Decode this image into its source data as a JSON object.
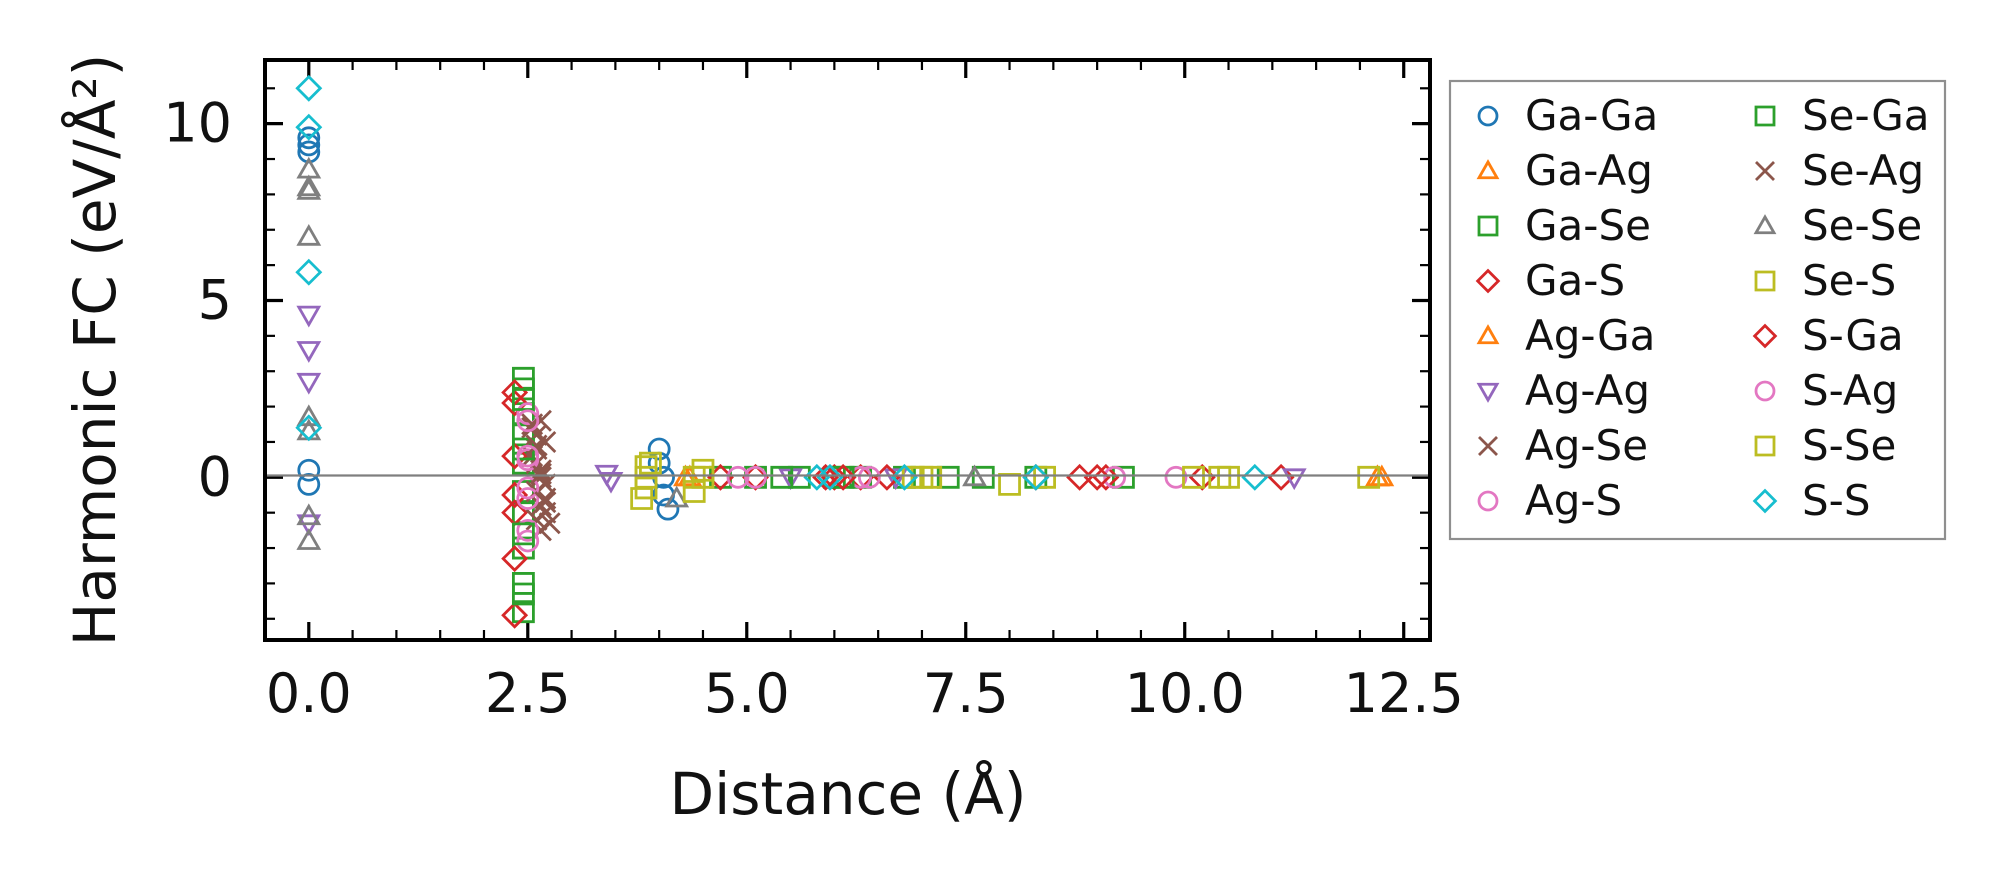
{
  "chart_data": {
    "type": "scatter",
    "title": "",
    "xlabel": "Distance (Å)",
    "ylabel": "Harmonic FC (eV/Å²)",
    "xlim": [
      -0.5,
      12.8
    ],
    "ylim": [
      -4.6,
      11.8
    ],
    "x_ticks": [
      "0.0",
      "2.5",
      "5.0",
      "7.5",
      "10.0",
      "12.5"
    ],
    "y_ticks": [
      "0",
      "5",
      "10"
    ],
    "grid": false,
    "legend_position": "right",
    "reference_line_y": 0,
    "colors": {
      "blue": "#1f77b4",
      "orange": "#ff7f0e",
      "green": "#2ca02c",
      "red": "#d62728",
      "purple": "#9467bd",
      "brown": "#8c564b",
      "pink": "#e377c2",
      "gray": "#7f7f7f",
      "olive": "#bcbd22",
      "cyan": "#17becf"
    },
    "series": [
      {
        "name": "Ga-Ga",
        "marker": "circle",
        "color": "#1f77b4",
        "x": [
          0,
          0,
          0,
          0,
          0,
          4.0,
          4.0,
          4.05,
          4.1,
          4.05
        ],
        "y": [
          9.6,
          9.4,
          9.2,
          0.2,
          -0.2,
          0.8,
          0.4,
          -0.5,
          -0.9,
          0.0
        ]
      },
      {
        "name": "Ga-Ag",
        "marker": "triangle-up",
        "color": "#ff7f0e",
        "x": [
          4.3,
          12.2,
          12.25
        ],
        "y": [
          0.0,
          0.0,
          0.0
        ]
      },
      {
        "name": "Ga-Se",
        "marker": "square",
        "color": "#2ca02c",
        "x": [
          2.45,
          2.45,
          2.45,
          2.45,
          2.45,
          2.45,
          2.45,
          2.45,
          2.45,
          2.45,
          4.7,
          5.1,
          5.6,
          6.0,
          6.3,
          6.8,
          7.3,
          7.7,
          8.3,
          9.3
        ],
        "y": [
          2.8,
          2.5,
          1.8,
          1.2,
          0.4,
          -0.4,
          -1.0,
          -2.0,
          -3.0,
          -3.8,
          0.0,
          0.0,
          0.0,
          0.0,
          0.0,
          0.0,
          0.0,
          0.0,
          0.0,
          0.0
        ]
      },
      {
        "name": "Ga-S",
        "marker": "diamond",
        "color": "#d62728",
        "x": [
          2.35,
          2.35,
          2.35,
          2.35,
          2.35,
          2.35,
          2.35,
          4.7,
          5.1,
          6.0,
          6.3,
          8.8,
          9.1,
          10.2,
          11.1
        ],
        "y": [
          2.4,
          2.1,
          0.6,
          -0.5,
          -1.0,
          -2.3,
          -3.9,
          0.0,
          0.0,
          0.0,
          0.0,
          0.0,
          0.0,
          0.0,
          0.0
        ]
      },
      {
        "name": "Ag-Ga",
        "marker": "triangle-up",
        "color": "#ff7f0e",
        "x": [
          4.35,
          12.2
        ],
        "y": [
          0.0,
          0.0
        ]
      },
      {
        "name": "Ag-Ag",
        "marker": "triangle-down",
        "color": "#9467bd",
        "x": [
          0,
          0,
          0,
          0,
          3.4,
          3.45,
          5.5,
          6.7,
          11.25
        ],
        "y": [
          4.6,
          3.6,
          2.7,
          -1.3,
          0.1,
          -0.1,
          0.0,
          0.0,
          0.0
        ]
      },
      {
        "name": "Ag-Se",
        "marker": "x",
        "color": "#8c564b",
        "x": [
          2.55,
          2.6,
          2.65,
          2.7,
          2.55,
          2.6,
          2.65,
          2.7,
          2.6,
          2.65,
          2.7,
          2.6,
          2.65,
          2.7,
          2.6,
          2.65
        ],
        "y": [
          1.4,
          1.2,
          1.6,
          1.0,
          0.6,
          0.4,
          0.2,
          -0.2,
          -0.4,
          -0.8,
          -1.0,
          -1.2,
          -1.5,
          -0.6,
          0.8,
          0.0
        ]
      },
      {
        "name": "Ag-S",
        "marker": "circle",
        "color": "#e377c2",
        "x": [
          2.5,
          2.5,
          2.5,
          2.5,
          2.5,
          2.5,
          5.1,
          6.3,
          9.2,
          9.9
        ],
        "y": [
          1.8,
          0.5,
          -0.3,
          -0.6,
          -1.5,
          -1.8,
          0.0,
          0.0,
          0.0,
          0.0
        ]
      },
      {
        "name": "Se-Ga",
        "marker": "square",
        "color": "#2ca02c",
        "x": [
          2.45,
          2.45,
          2.45,
          2.45,
          5.4,
          6.1
        ],
        "y": [
          2.2,
          0.8,
          -1.6,
          -3.3,
          0.0,
          0.0
        ]
      },
      {
        "name": "Se-Ag",
        "marker": "x",
        "color": "#8c564b",
        "x": [
          2.55,
          2.6,
          2.65,
          2.7,
          2.75
        ],
        "y": [
          1.5,
          0.9,
          0.1,
          -0.7,
          -1.3
        ]
      },
      {
        "name": "Se-Se",
        "marker": "triangle-up",
        "color": "#7f7f7f",
        "x": [
          0,
          0,
          0,
          0,
          0,
          0,
          0,
          0,
          4.2,
          7.6
        ],
        "y": [
          8.7,
          8.2,
          8.1,
          6.8,
          1.7,
          1.3,
          -1.1,
          -1.8,
          -0.6,
          0.0
        ]
      },
      {
        "name": "Se-S",
        "marker": "square",
        "color": "#bcbd22",
        "x": [
          3.85,
          3.85,
          3.85,
          4.4,
          4.5,
          6.9,
          7.1,
          8.0,
          10.1,
          10.5
        ],
        "y": [
          0.0,
          -0.3,
          0.3,
          0.0,
          0.2,
          0.0,
          0.0,
          -0.2,
          0.0,
          0.0
        ]
      },
      {
        "name": "S-Ga",
        "marker": "diamond",
        "color": "#d62728",
        "x": [
          5.9,
          6.1,
          6.6,
          8.3,
          9.0
        ],
        "y": [
          0.0,
          0.0,
          0.0,
          0.0,
          0.0
        ]
      },
      {
        "name": "S-Ag",
        "marker": "circle",
        "color": "#e377c2",
        "x": [
          2.5,
          2.5,
          4.9,
          6.4
        ],
        "y": [
          1.6,
          0.6,
          0.0,
          0.0
        ]
      },
      {
        "name": "S-Se",
        "marker": "square",
        "color": "#bcbd22",
        "x": [
          3.8,
          3.9,
          4.4,
          4.5,
          7.0,
          8.4,
          10.4,
          12.1
        ],
        "y": [
          -0.6,
          0.4,
          -0.4,
          0.0,
          0.0,
          0.0,
          0.0,
          0.0
        ]
      },
      {
        "name": "S-S",
        "marker": "diamond",
        "color": "#17becf",
        "x": [
          0,
          0,
          0,
          0,
          5.8,
          5.95,
          6.8,
          8.3,
          10.8
        ],
        "y": [
          11.0,
          9.9,
          5.8,
          1.4,
          0.0,
          0.0,
          0.0,
          0.0,
          0.0
        ]
      }
    ]
  }
}
